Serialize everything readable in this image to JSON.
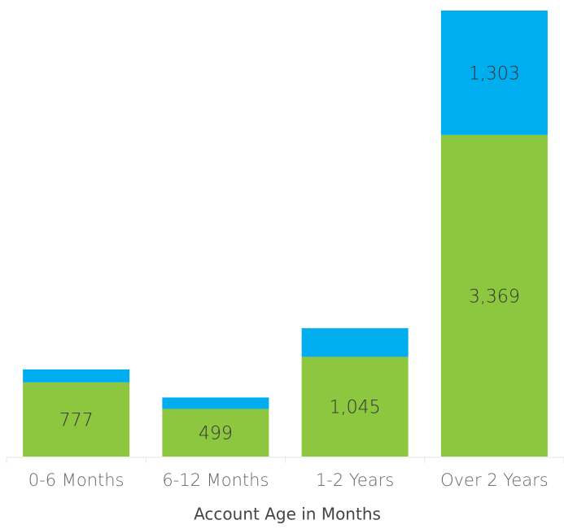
{
  "chart_data": {
    "type": "stacked-bar",
    "x_label": "Account Age in Months",
    "categories": [
      "0-6 Months",
      "6-12 Months",
      "1-2 Years",
      "Over 2 Years"
    ],
    "series": [
      {
        "color": "#8dc63f",
        "values": [
          777,
          499,
          1045,
          3369
        ],
        "value_labels": [
          "777",
          "499",
          "1,045",
          "3,369"
        ]
      },
      {
        "color": "#00aeef",
        "values": [
          136,
          120,
          300,
          1303
        ],
        "value_labels": [
          null,
          null,
          null,
          "1,303"
        ]
      }
    ]
  }
}
